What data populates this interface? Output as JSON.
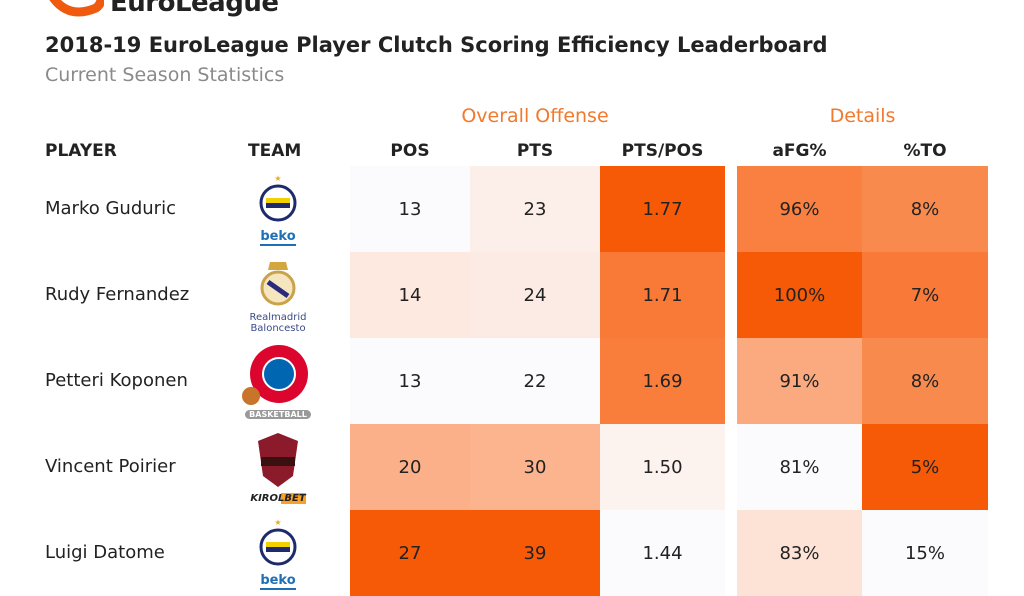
{
  "brand": {
    "name": "EuroLeague",
    "color": "#f05a0f"
  },
  "title": "2018-19 EuroLeague Player Clutch Scoring Efficiency Leaderboard",
  "subtitle": "Current Season Statistics",
  "groups": {
    "overall": "Overall Offense",
    "details": "Details"
  },
  "headers": {
    "player": "PLAYER",
    "team": "TEAM",
    "pos": "POS",
    "pts": "PTS",
    "pts_pos": "PTS/POS",
    "afg": "aFG%",
    "to": "%TO"
  },
  "rows": [
    {
      "player": "Marko Guduric",
      "team_logo": "fenerbahce-beko",
      "sponsor": "beko",
      "pos": "13",
      "pts": "23",
      "pts_pos": "1.77",
      "afg": "96%",
      "to": "8%",
      "colors": [
        "#fbfbfd",
        "#fcefea",
        "#f75a07",
        "#f98040",
        "#f98a4e"
      ]
    },
    {
      "player": "Rudy Fernandez",
      "team_logo": "real-madrid",
      "sponsor": "Realmadrid Baloncesto",
      "pos": "14",
      "pts": "24",
      "pts_pos": "1.71",
      "afg": "100%",
      "to": "7%",
      "colors": [
        "#fde9e0",
        "#fcebe4",
        "#f97936",
        "#f75a07",
        "#f97a38"
      ]
    },
    {
      "player": "Petteri Koponen",
      "team_logo": "bayern-munchen",
      "sponsor": "BASKETBALL",
      "pos": "13",
      "pts": "22",
      "pts_pos": "1.69",
      "afg": "91%",
      "to": "8%",
      "colors": [
        "#fbfbfd",
        "#fbfbfd",
        "#f97e3c",
        "#fbaa80",
        "#f98a4e"
      ]
    },
    {
      "player": "Vincent Poirier",
      "team_logo": "baskonia",
      "sponsor": "KIROLBET",
      "pos": "20",
      "pts": "30",
      "pts_pos": "1.50",
      "afg": "81%",
      "to": "5%",
      "colors": [
        "#fbb08a",
        "#fbb48e",
        "#fdf3ee",
        "#fbfbfd",
        "#f75a07"
      ]
    },
    {
      "player": "Luigi Datome",
      "team_logo": "fenerbahce-beko",
      "sponsor": "beko",
      "pos": "27",
      "pts": "39",
      "pts_pos": "1.44",
      "afg": "83%",
      "to": "15%",
      "colors": [
        "#f75a07",
        "#f75a07",
        "#fbfbfd",
        "#fde3d5",
        "#fbfbfd"
      ]
    }
  ]
}
